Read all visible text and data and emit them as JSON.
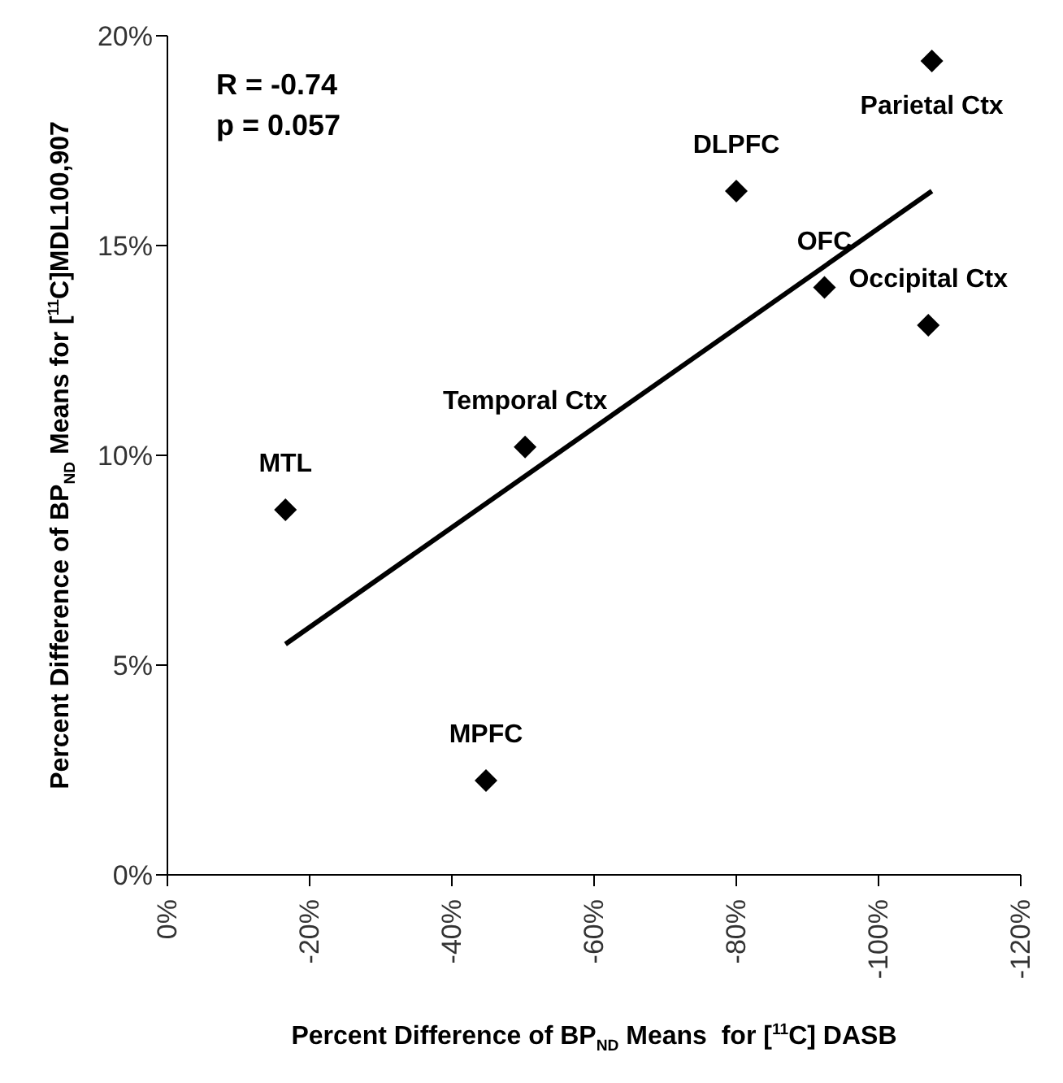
{
  "chart_data": {
    "type": "scatter",
    "xlabel": "Percent Difference of BP$_{ND}$ Means  for [$^{11}$C] DASB",
    "ylabel": "Percent Difference of BP$_{ND}$ Means for [$^{11}$C]MDL100,907",
    "xlim": [
      0,
      -120
    ],
    "xticks": [
      {
        "value": 0,
        "label": "0%"
      },
      {
        "value": -20,
        "label": "-20%"
      },
      {
        "value": -40,
        "label": "-40%"
      },
      {
        "value": -60,
        "label": "-60%"
      },
      {
        "value": -80,
        "label": "-80%"
      },
      {
        "value": -100,
        "label": "-100%"
      },
      {
        "value": -120,
        "label": "-120%"
      }
    ],
    "ylim": [
      0,
      20
    ],
    "yticks": [
      {
        "value": 0,
        "label": "0%"
      },
      {
        "value": 5,
        "label": "5%"
      },
      {
        "value": 10,
        "label": "10%"
      },
      {
        "value": 15,
        "label": "15%"
      },
      {
        "value": 20,
        "label": "20%"
      }
    ],
    "grid": false,
    "legend": false,
    "series": [
      {
        "color": "#000000",
        "marker": "diamond",
        "x": [
          -16.6,
          -50.3,
          -80,
          -92.4,
          -107.5,
          -107,
          -44.8
        ],
        "values": [
          8.7,
          10.2,
          16.3,
          14.0,
          19.4,
          13.1,
          2.25
        ]
      },
      {
        "type": "line",
        "color": "#000000",
        "line_style": "solid",
        "x": [
          -16.6,
          -107.5
        ],
        "values": [
          5.5,
          16.3
        ]
      }
    ],
    "annotations": [
      "R = -0.74",
      "p = 0.057",
      {
        "text": "MTL",
        "x": -16.6,
        "y": 8.7
      },
      {
        "text": "Temporal Ctx",
        "x": -50.3,
        "y": 10.2
      },
      {
        "text": "DLPFC",
        "x": -80,
        "y": 16.3
      },
      {
        "text": "OFC",
        "x": -92.4,
        "y": 14.0
      },
      {
        "text": "Parietal Ctx",
        "x": -107.5,
        "y": 19.4
      },
      {
        "text": "Occipital Ctx",
        "x": -107,
        "y": 13.1
      },
      {
        "text": "MPFC",
        "x": -44.8,
        "y": 2.25
      }
    ]
  }
}
